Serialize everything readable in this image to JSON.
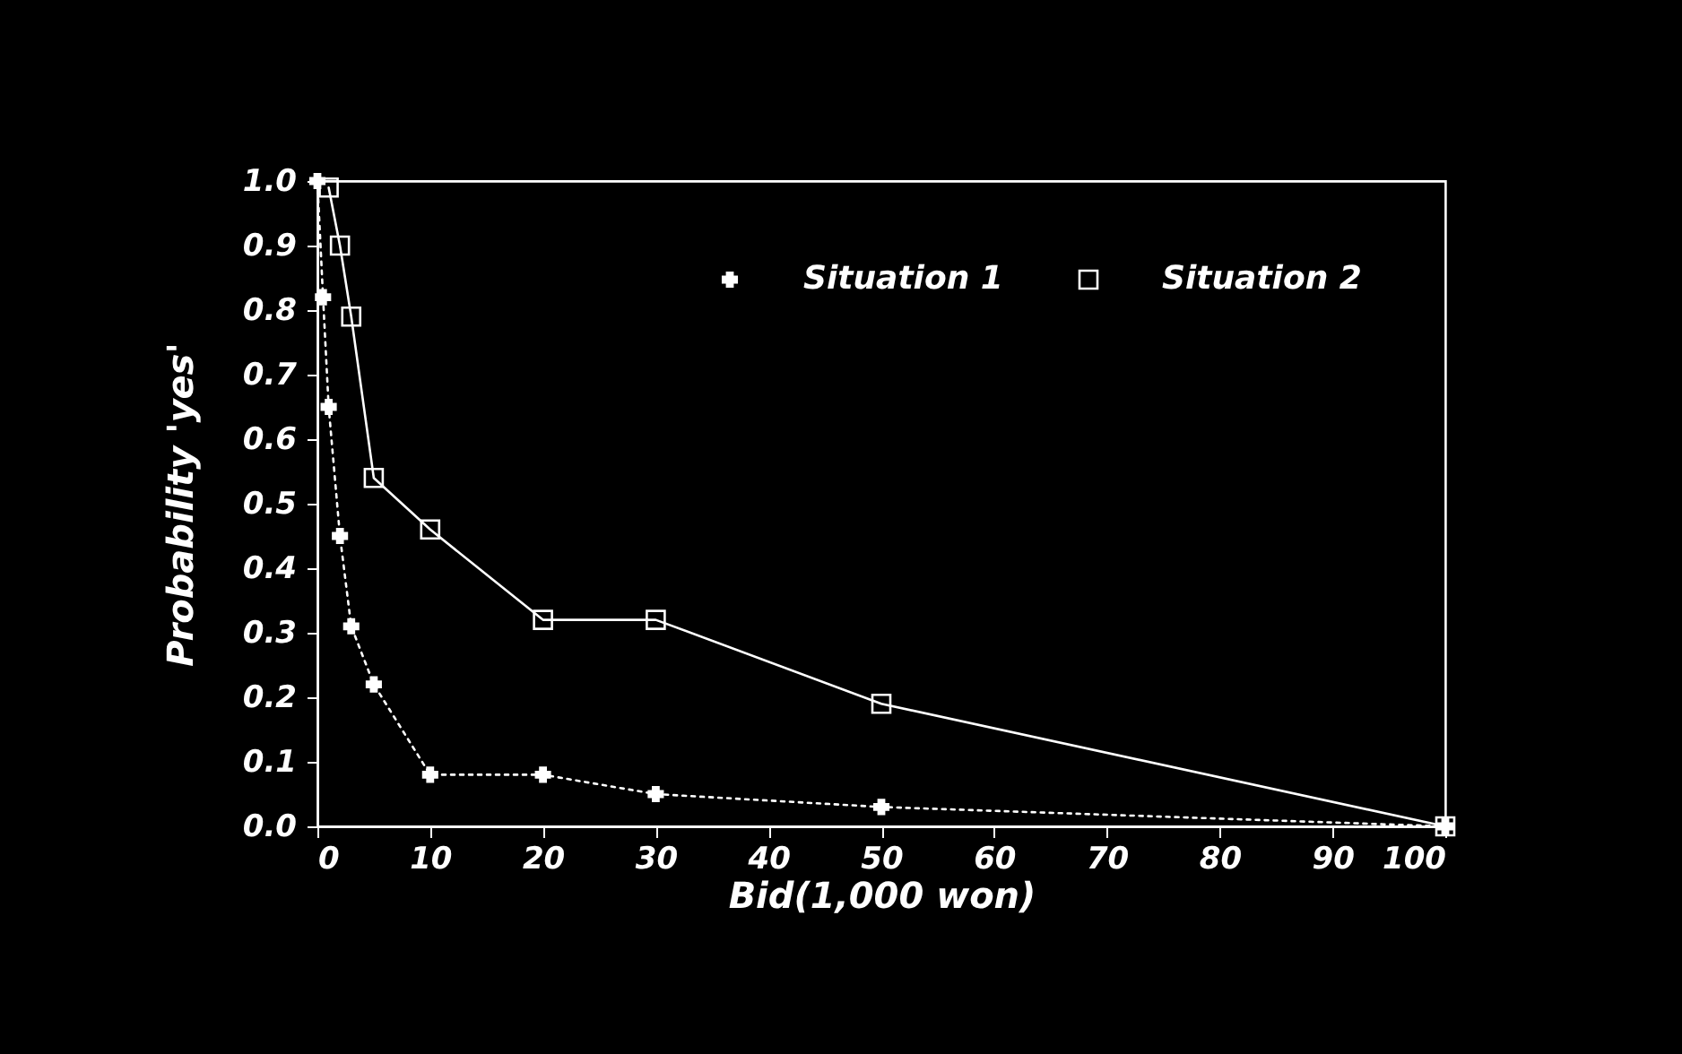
{
  "chart_data": {
    "type": "line",
    "xlabel": "Bid(1,000 won)",
    "ylabel": "Probability 'yes'",
    "xlim": [
      0,
      100
    ],
    "xticks": [
      0,
      10,
      20,
      30,
      40,
      50,
      60,
      70,
      80,
      90,
      100
    ],
    "ylim": [
      0,
      1
    ],
    "yticks": [
      {
        "value": 0,
        "label": "0.0"
      },
      0.1,
      0.2,
      0.3,
      0.4,
      0.5,
      0.6,
      0.7,
      0.8,
      0.9,
      {
        "value": 1,
        "label": "1.0"
      }
    ],
    "grid": false,
    "legend": "top right",
    "series": [
      {
        "name": "Situation 1",
        "color": "#ffffff",
        "marker": "cross",
        "line_style": "dotted",
        "x": [
          0,
          0.5,
          1,
          2,
          3,
          5,
          10,
          20,
          30,
          50,
          100
        ],
        "values": [
          1.0,
          0.82,
          0.65,
          0.45,
          0.31,
          0.22,
          0.08,
          0.08,
          0.05,
          0.03,
          0
        ]
      },
      {
        "name": "Situation 2",
        "color": "#ffffff",
        "marker": "square",
        "line_style": "solid",
        "x": [
          1,
          2,
          3,
          5,
          10,
          20,
          30,
          50,
          100
        ],
        "values": [
          0.99,
          0.9,
          0.79,
          0.54,
          0.46,
          0.32,
          0.32,
          0.19,
          0
        ]
      }
    ]
  }
}
